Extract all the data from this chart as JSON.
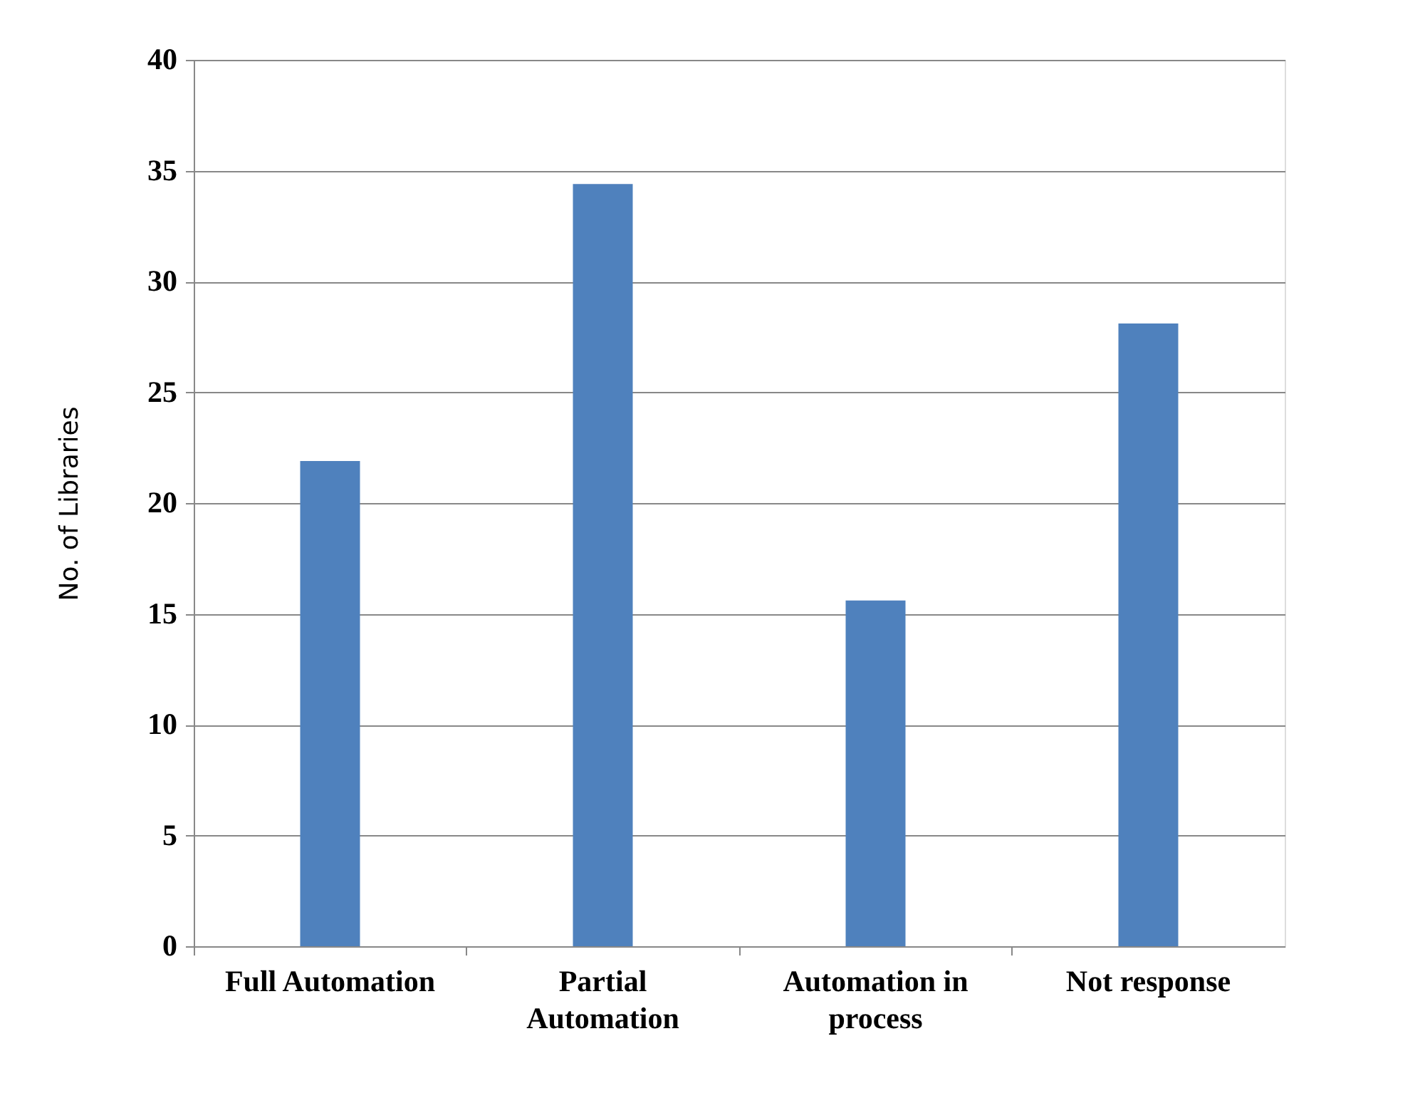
{
  "chart_data": {
    "type": "bar",
    "ylabel": "No. of Libraries",
    "categories": [
      "Full Automation",
      "Partial Automation",
      "Automation in process",
      "Not response"
    ],
    "values": [
      21.9,
      34.4,
      15.6,
      28.1
    ],
    "color": "#4f81bd",
    "ylim": [
      0,
      40
    ],
    "yticks": [
      0,
      5,
      10,
      15,
      20,
      25,
      30,
      35,
      40
    ],
    "grid": "y"
  }
}
